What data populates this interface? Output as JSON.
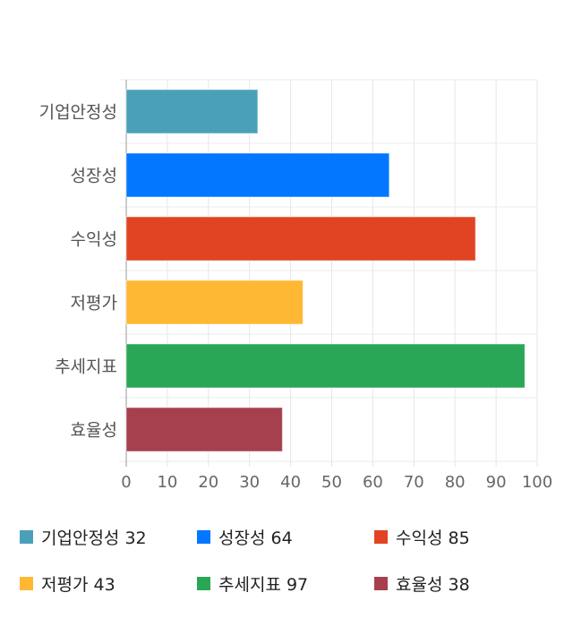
{
  "chart_data": {
    "type": "bar",
    "orientation": "horizontal",
    "categories": [
      "기업안정성",
      "성장성",
      "수익성",
      "저평가",
      "추세지표",
      "효율성"
    ],
    "values": [
      32,
      64,
      85,
      43,
      97,
      38
    ],
    "colors": [
      "#4aa0b9",
      "#0377ff",
      "#e14423",
      "#feb833",
      "#29a756",
      "#a7404e"
    ],
    "xlim": [
      0,
      100
    ],
    "xticks": [
      "0",
      "10",
      "20",
      "30",
      "40",
      "50",
      "60",
      "70",
      "80",
      "90",
      "100"
    ],
    "grid": true,
    "legend_placement": "bottom",
    "legend": [
      "기업안정성 32",
      "성장성 64",
      "수익성 85",
      "저평가 43",
      "추세지표 97",
      "효율성 38"
    ]
  }
}
